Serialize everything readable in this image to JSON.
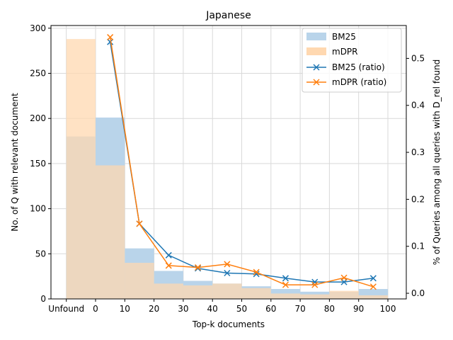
{
  "chart_data": {
    "type": "bar",
    "title": "Japanese",
    "xlabel": "Top-k documents",
    "ylabel": "No. of Q with relevant document",
    "ylabel_right": "% of Queries among all queries with D_rel found",
    "categories": [
      "Unfound",
      "0-10",
      "10-20",
      "20-30",
      "30-40",
      "40-50",
      "50-60",
      "60-70",
      "70-80",
      "80-90",
      "90-100"
    ],
    "x_ticks": [
      "Unfound",
      "0",
      "10",
      "20",
      "30",
      "40",
      "50",
      "60",
      "70",
      "80",
      "90",
      "100"
    ],
    "ylim": [
      0,
      303
    ],
    "y_ticks": [
      0,
      50,
      100,
      150,
      200,
      250,
      300
    ],
    "ylim_right": [
      -0.012,
      0.57
    ],
    "y_ticks_right": [
      0.0,
      0.1,
      0.2,
      0.3,
      0.4,
      0.5
    ],
    "grid": true,
    "legend_position": "top-right",
    "series": [
      {
        "name": "BM25",
        "kind": "bar",
        "color": "#b9d4ea",
        "values": [
          180,
          201,
          56,
          31,
          20,
          17,
          14,
          11,
          8,
          8,
          11
        ]
      },
      {
        "name": "mDPR",
        "kind": "bar",
        "color": "#ffd8b0",
        "values": [
          288,
          148,
          40,
          17,
          15,
          17,
          12,
          6,
          5,
          9,
          4
        ]
      },
      {
        "name": "BM25 (ratio)",
        "kind": "line",
        "marker": "x",
        "color": "#1f77b4",
        "x": [
          5,
          15,
          25,
          35,
          45,
          55,
          65,
          75,
          85,
          95
        ],
        "values": [
          0.535,
          0.148,
          0.081,
          0.053,
          0.043,
          0.041,
          0.032,
          0.024,
          0.024,
          0.032
        ]
      },
      {
        "name": "mDPR (ratio)",
        "kind": "line",
        "marker": "x",
        "color": "#ff7f0e",
        "x": [
          5,
          15,
          25,
          35,
          45,
          55,
          65,
          75,
          85,
          95
        ],
        "values": [
          0.545,
          0.148,
          0.059,
          0.055,
          0.062,
          0.045,
          0.018,
          0.018,
          0.033,
          0.014
        ]
      }
    ]
  }
}
